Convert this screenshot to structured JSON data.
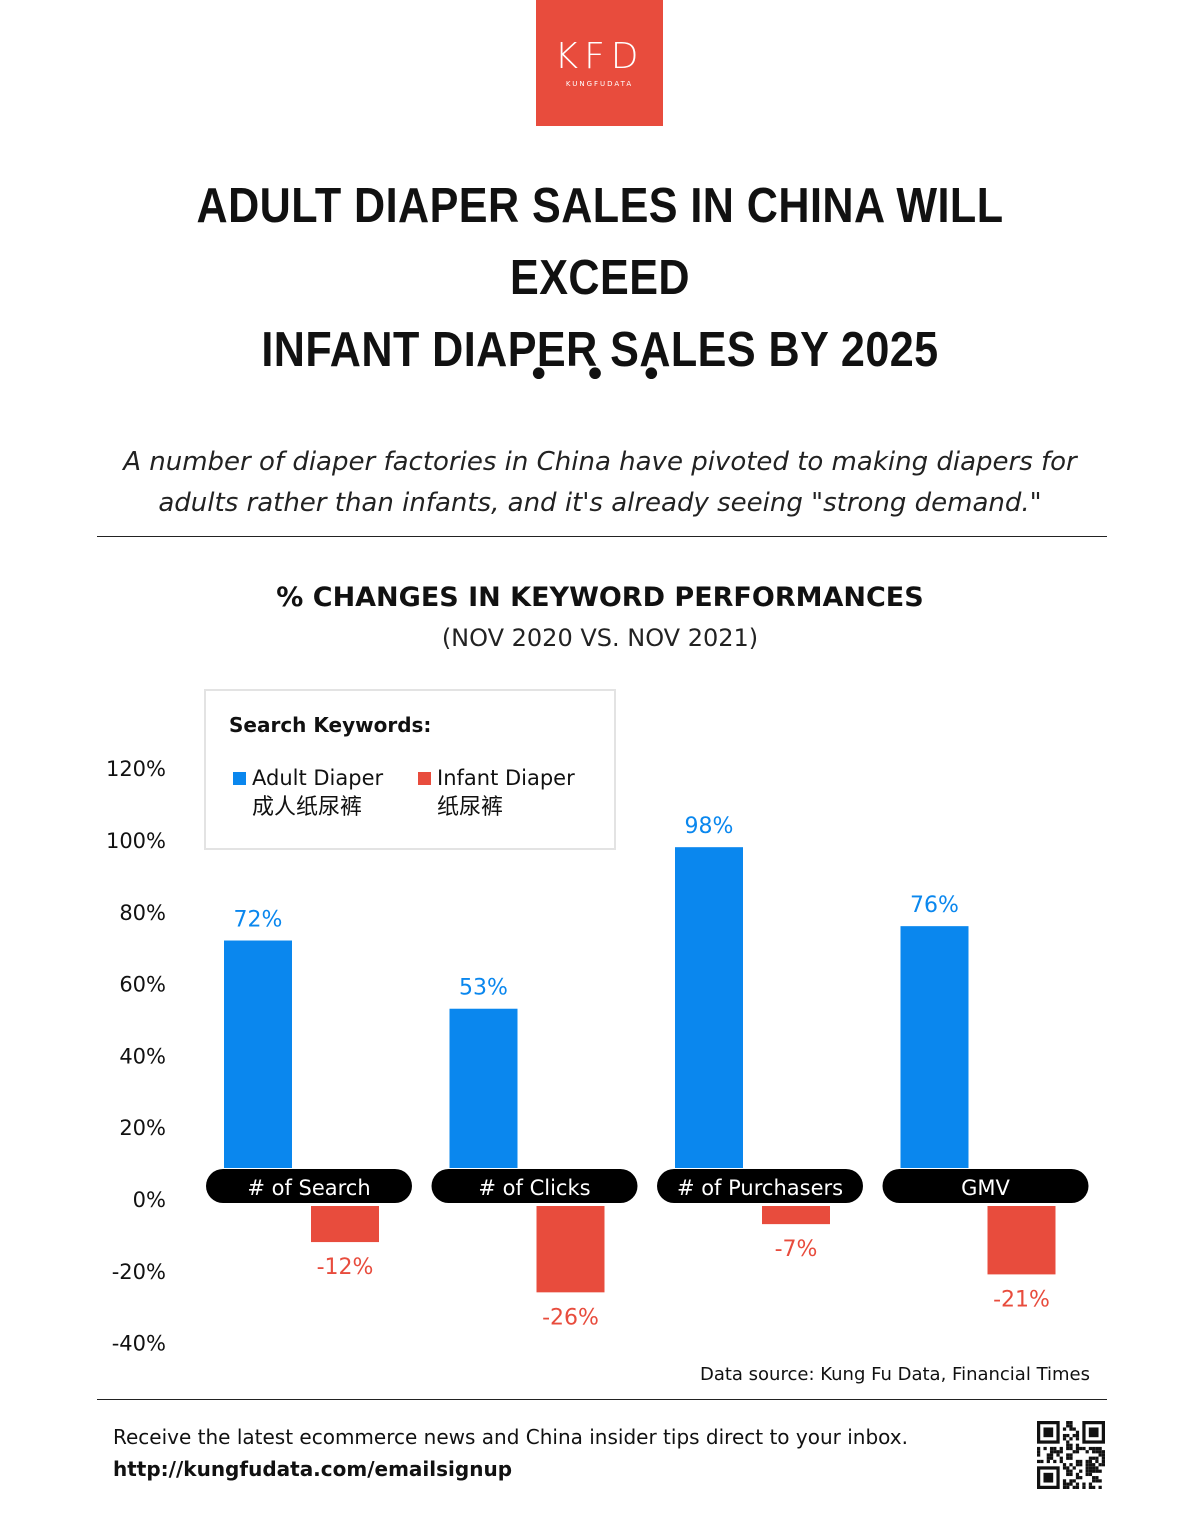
{
  "logo": {
    "mark": "KFD",
    "sub": "KUNGFUDATA"
  },
  "title_line1": "ADULT DIAPER SALES IN CHINA WILL EXCEED",
  "title_line2": "INFANT DIAPER SALES BY 2025",
  "dots": "• • •",
  "subtitle_line1": "A number of diaper factories in China have pivoted to making diapers for",
  "subtitle_line2": "adults rather than infants, and it's already seeing \"strong demand.\"",
  "colors": {
    "adult": "#0a87ee",
    "infant": "#e84c3d",
    "label_bg": "#000000",
    "brand": "#e84c3d"
  },
  "legend": {
    "title": "Search Keywords:",
    "adult_en": "Adult Diaper",
    "adult_cn": "成人纸尿裤",
    "infant_en": "Infant Diaper",
    "infant_cn": "纸尿裤",
    "position": "top-left"
  },
  "chart_data": {
    "type": "bar",
    "title": "% CHANGES IN KEYWORD PERFORMANCES",
    "subtitle": "(NOV 2020 VS. NOV 2021)",
    "categories": [
      "# of Search",
      "# of Clicks",
      "# of Purchasers",
      "GMV"
    ],
    "series": [
      {
        "name": "Adult Diaper",
        "values": [
          72,
          53,
          98,
          76
        ],
        "labels": [
          "72%",
          "53%",
          "98%",
          "76%"
        ]
      },
      {
        "name": "Infant Diaper",
        "values": [
          -12,
          -26,
          -7,
          -21
        ],
        "labels": [
          "-12%",
          "-26%",
          "-7%",
          "-21%"
        ]
      }
    ],
    "ylim": [
      -40,
      120
    ],
    "yticks": [
      120,
      100,
      80,
      60,
      40,
      20,
      0,
      -20,
      -40
    ],
    "ytick_labels": [
      "120%",
      "100%",
      "80%",
      "60%",
      "40%",
      "20%",
      "0%",
      "-20%",
      "-40%"
    ],
    "grid": false,
    "xlabel": "",
    "ylabel": ""
  },
  "source": "Data source: Kung Fu Data, Financial Times",
  "footer": {
    "text": "Receive the latest ecommerce news and China insider tips direct to your inbox.",
    "link": "http://kungfudata.com/emailsignup"
  }
}
